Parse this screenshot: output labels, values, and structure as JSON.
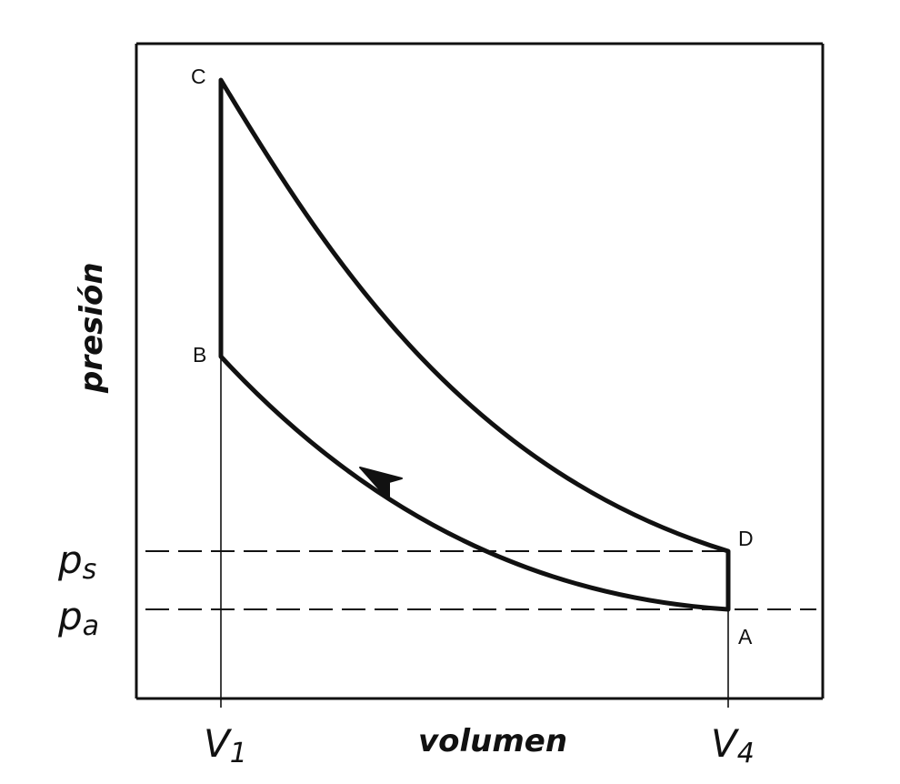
{
  "axes": {
    "x_label": "volumen",
    "y_label": "presión"
  },
  "points": {
    "A": "A",
    "B": "B",
    "C": "C",
    "D": "D"
  },
  "volume_marks": {
    "v1": {
      "base": "V",
      "sub": "1"
    },
    "v4": {
      "base": "V",
      "sub": "4"
    }
  },
  "pressure_marks": {
    "ps": {
      "base": "p",
      "sub": "s"
    },
    "pa": {
      "base": "p",
      "sub": "a"
    }
  },
  "colors": {
    "ink": "#111111",
    "background": "#ffffff"
  }
}
